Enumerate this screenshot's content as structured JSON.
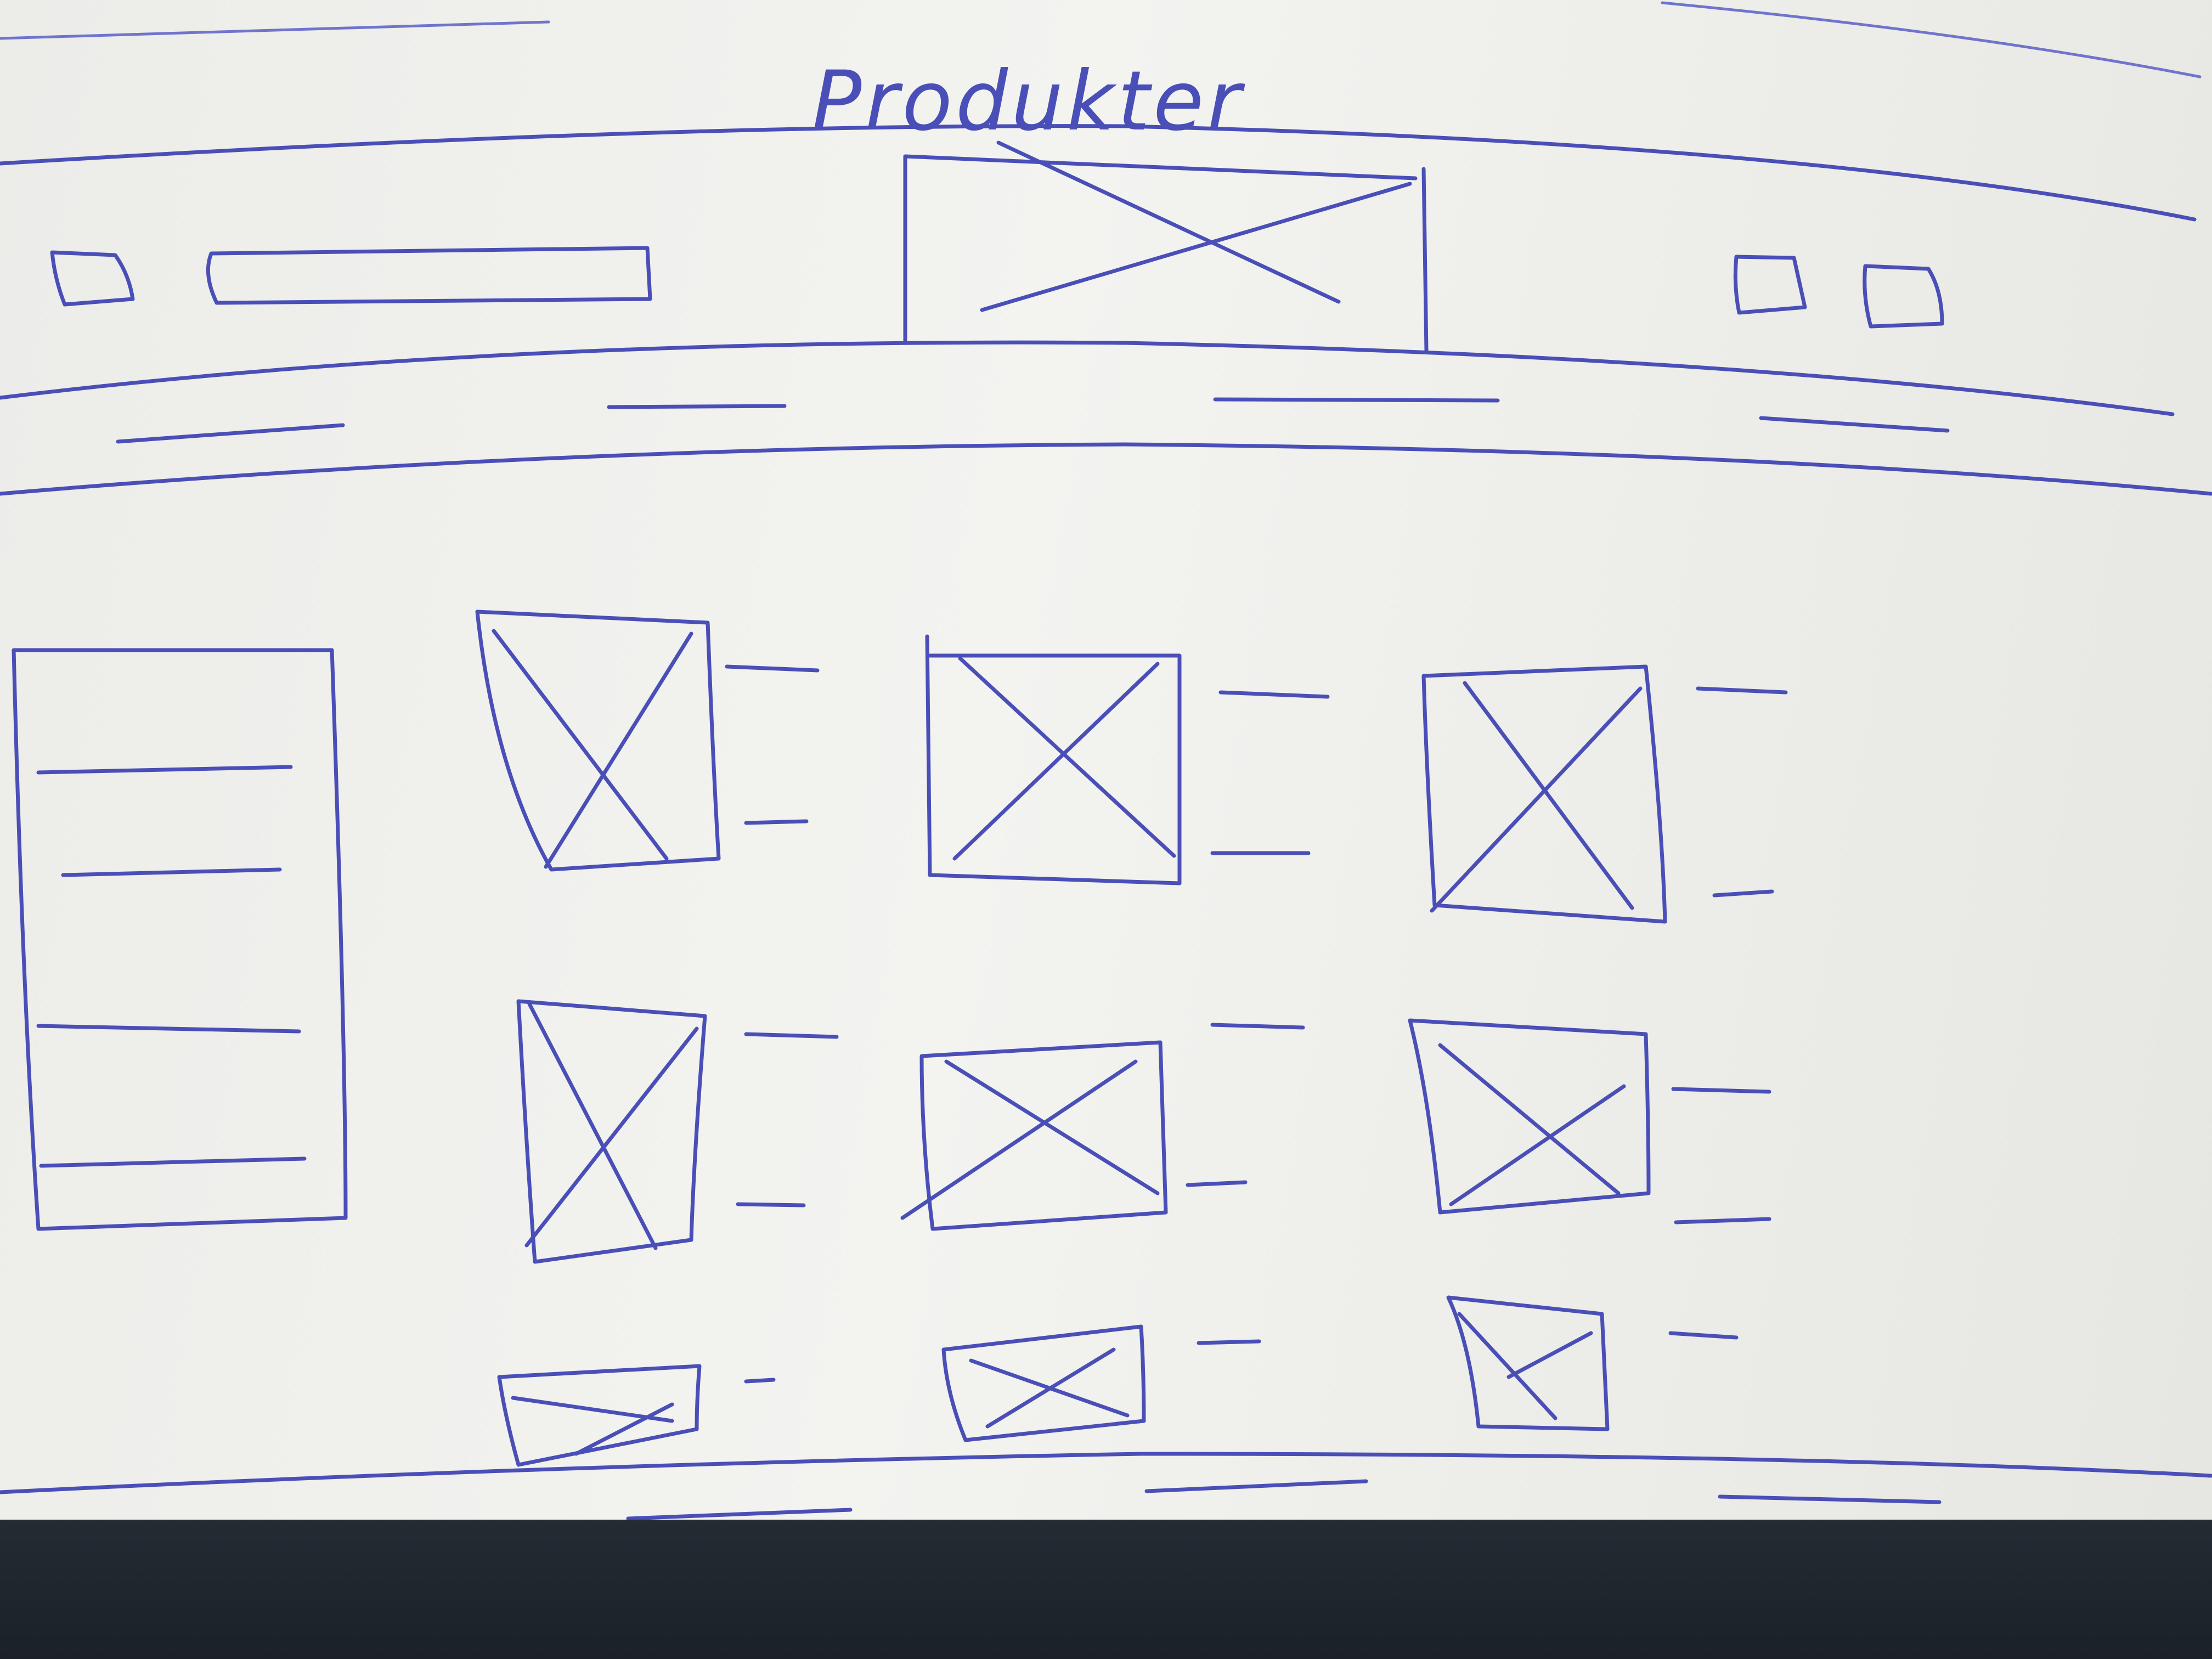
{
  "header": {
    "title": "Produkter",
    "logo_placeholder": "image-placeholder",
    "menu_icon": "square-icon",
    "search_field": "empty-bar",
    "action_icons": [
      "square-icon",
      "square-icon"
    ]
  },
  "nav": {
    "item_count": 4
  },
  "sidebar": {
    "line_count": 4
  },
  "products": {
    "rows": 3,
    "columns": 3,
    "placeholder_icon": "image-placeholder"
  },
  "footer": {
    "line_count": 4
  },
  "colors": {
    "ink": "#4a4fb8",
    "paper": "#efefec",
    "desk": "#1f252c"
  }
}
